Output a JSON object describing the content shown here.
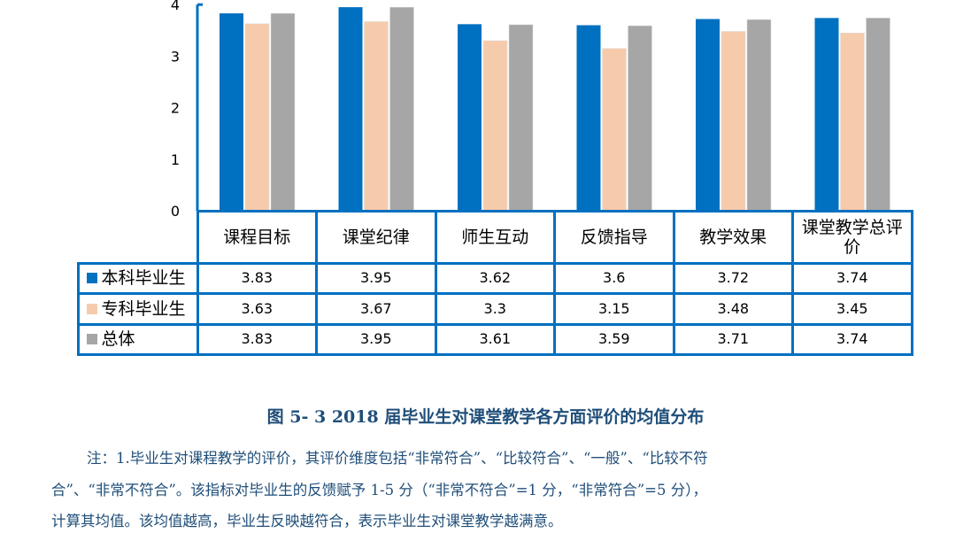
{
  "chart_data": {
    "type": "bar",
    "categories": [
      "课程目标",
      "课堂纪律",
      "师生互动",
      "反馈指导",
      "教学效果",
      "课堂教学总评价"
    ],
    "series": [
      {
        "name": "本科毕业生",
        "color": "#0070c0",
        "values": [
          3.83,
          3.95,
          3.62,
          3.6,
          3.72,
          3.74
        ]
      },
      {
        "name": "专科毕业生",
        "color": "#f6cbac",
        "values": [
          3.63,
          3.67,
          3.3,
          3.15,
          3.48,
          3.45
        ]
      },
      {
        "name": "总体",
        "color": "#a6a6a6",
        "values": [
          3.83,
          3.95,
          3.61,
          3.59,
          3.71,
          3.74
        ]
      }
    ],
    "value_labels": [
      [
        "3.83",
        "3.95",
        "3.62",
        "3.6",
        "3.72",
        "3.74"
      ],
      [
        "3.63",
        "3.67",
        "3.3",
        "3.15",
        "3.48",
        "3.45"
      ],
      [
        "3.83",
        "3.95",
        "3.61",
        "3.59",
        "3.71",
        "3.74"
      ]
    ],
    "yticks": [
      "0",
      "1",
      "2",
      "3",
      "4"
    ],
    "ylim": [
      0,
      4
    ],
    "grid": false,
    "legend": "data-table"
  },
  "caption": "图 5- 3    2018 届毕业生对课堂教学各方面评价的均值分布",
  "notes": [
    "注：1.毕业生对课程教学的评价，其评价维度包括“非常符合”、“比较符合”、“一般”、“比较不符",
    "合”、“非常不符合”。该指标对毕业生的反馈赋予 1-5 分（“非常不符合”=1 分，“非常符合”=5 分），",
    "计算其均值。该均值越高，毕业生反映越符合，表示毕业生对课堂教学越满意。"
  ]
}
